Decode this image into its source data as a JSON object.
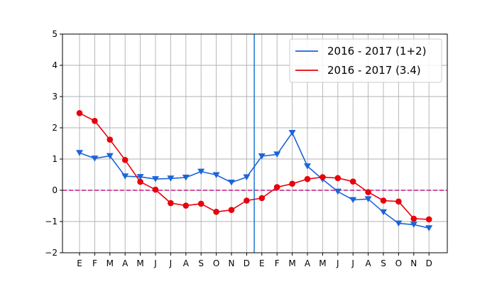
{
  "chart_data": {
    "type": "line",
    "categories": [
      "E",
      "F",
      "M",
      "A",
      "M",
      "J",
      "J",
      "A",
      "S",
      "O",
      "N",
      "D",
      "E",
      "F",
      "M",
      "A",
      "M",
      "J",
      "J",
      "A",
      "S",
      "O",
      "N",
      "D"
    ],
    "ylim": [
      -2,
      5
    ],
    "yticks": [
      -2,
      -1,
      0,
      1,
      2,
      3,
      4,
      5
    ],
    "ytick_labels": [
      "−2",
      "−1",
      "0",
      "1",
      "2",
      "3",
      "4",
      "5"
    ],
    "grid": true,
    "legend_position": "top-right",
    "reference_hline": {
      "y": 0,
      "color": "#c71585",
      "style": "dashed"
    },
    "reference_vline": {
      "after_category_index": 11,
      "color": "#1f77d4"
    },
    "series": [
      {
        "name": "2016 - 2017 (1+2)",
        "color": "#1c64d8",
        "marker": "triangle-down",
        "values": [
          1.2,
          1.02,
          1.1,
          0.45,
          0.43,
          0.36,
          0.38,
          0.41,
          0.6,
          0.49,
          0.25,
          0.42,
          1.09,
          1.15,
          1.84,
          0.77,
          0.35,
          -0.04,
          -0.31,
          -0.28,
          -0.7,
          -1.06,
          -1.1,
          -1.21
        ]
      },
      {
        "name": "2016 - 2017 (3.4)",
        "color": "#e8000b",
        "marker": "circle",
        "values": [
          2.47,
          2.22,
          1.62,
          0.97,
          0.27,
          0.02,
          -0.41,
          -0.49,
          -0.43,
          -0.69,
          -0.63,
          -0.33,
          -0.25,
          0.1,
          0.21,
          0.36,
          0.42,
          0.39,
          0.28,
          -0.06,
          -0.33,
          -0.36,
          -0.91,
          -0.93
        ]
      }
    ]
  }
}
